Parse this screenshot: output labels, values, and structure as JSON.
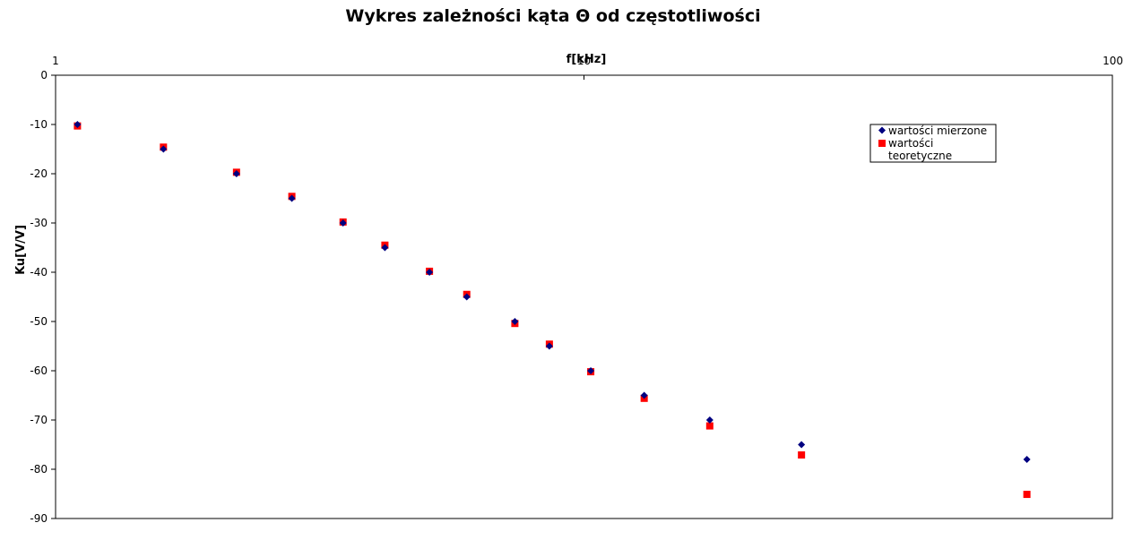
{
  "chart_data": {
    "type": "scatter",
    "title": "Wykres zależności kąta Θ od częstotliwości",
    "xlabel": "f[kHz]",
    "ylabel": "Ku[V/V]",
    "x_scale": "log",
    "xlim": [
      1,
      100
    ],
    "ylim": [
      -90,
      0
    ],
    "x_ticks": [
      1,
      10,
      100
    ],
    "x_tick_labels": [
      "1",
      "10",
      "100"
    ],
    "y_ticks": [
      0,
      -10,
      -20,
      -30,
      -40,
      -50,
      -60,
      -70,
      -80,
      -90
    ],
    "y_tick_labels": [
      "0",
      "-10",
      "-20",
      "-30",
      "-40",
      "-50",
      "-60",
      "-70",
      "-80",
      "-90"
    ],
    "x_axis_position": "top",
    "grid": false,
    "legend_position": "top-right",
    "series": [
      {
        "name": "wartości mierzone",
        "marker": "diamond",
        "color": "#000080",
        "points": [
          {
            "x": 1.1,
            "y": -10
          },
          {
            "x": 1.6,
            "y": -15
          },
          {
            "x": 2.2,
            "y": -20
          },
          {
            "x": 2.8,
            "y": -25
          },
          {
            "x": 3.5,
            "y": -30
          },
          {
            "x": 4.2,
            "y": -35
          },
          {
            "x": 5.1,
            "y": -40
          },
          {
            "x": 6.0,
            "y": -45
          },
          {
            "x": 7.4,
            "y": -50
          },
          {
            "x": 8.6,
            "y": -55
          },
          {
            "x": 10.3,
            "y": -60
          },
          {
            "x": 13.0,
            "y": -65
          },
          {
            "x": 17.3,
            "y": -70
          },
          {
            "x": 25.8,
            "y": -75
          },
          {
            "x": 68.9,
            "y": -78
          }
        ]
      },
      {
        "name": "wartości teoretyczne",
        "marker": "square",
        "color": "#ff0000",
        "points": [
          {
            "x": 1.1,
            "y": -10.3
          },
          {
            "x": 1.6,
            "y": -14.6
          },
          {
            "x": 2.2,
            "y": -19.7
          },
          {
            "x": 2.8,
            "y": -24.6
          },
          {
            "x": 3.5,
            "y": -29.8
          },
          {
            "x": 4.2,
            "y": -34.5
          },
          {
            "x": 5.1,
            "y": -39.8
          },
          {
            "x": 6.0,
            "y": -44.5
          },
          {
            "x": 7.4,
            "y": -50.4
          },
          {
            "x": 8.6,
            "y": -54.6
          },
          {
            "x": 10.3,
            "y": -60.2
          },
          {
            "x": 13.0,
            "y": -65.6
          },
          {
            "x": 17.3,
            "y": -71.2
          },
          {
            "x": 25.8,
            "y": -77.1
          },
          {
            "x": 68.9,
            "y": -85.1
          }
        ]
      }
    ]
  },
  "legend": {
    "items": [
      {
        "label_lines": [
          "wartości mierzone"
        ]
      },
      {
        "label_lines": [
          "wartości",
          "teoretyczne"
        ]
      }
    ]
  }
}
